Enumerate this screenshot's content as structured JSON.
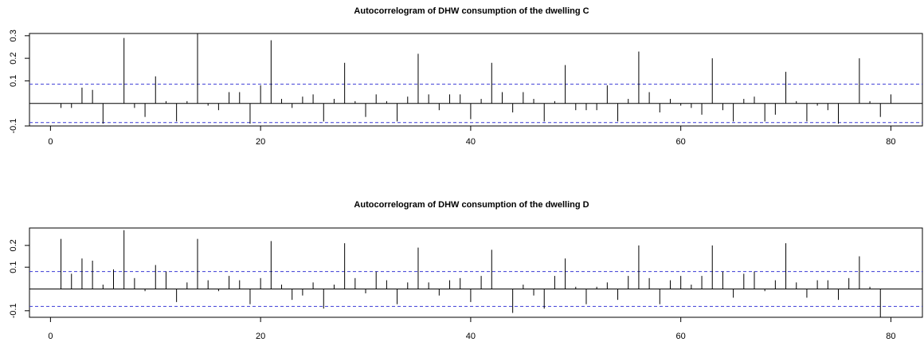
{
  "chart_data": [
    {
      "type": "bar",
      "title": "Autocorrelogram of DHW consumption of the dwelling C",
      "xlabel": "",
      "ylabel": "",
      "xlim": [
        -2,
        83
      ],
      "ylim": [
        -0.1,
        0.31
      ],
      "x_ticks": [
        0,
        20,
        40,
        60,
        80
      ],
      "x_tick_labels": [
        "0",
        "20",
        "40",
        "60",
        "80"
      ],
      "y_ticks": [
        -0.1,
        0.1,
        0.2,
        0.3
      ],
      "y_tick_labels": [
        "-0.1",
        "0.1",
        "0.2",
        "0.3"
      ],
      "confidence_band": 0.085,
      "lags": [
        1,
        2,
        3,
        4,
        5,
        6,
        7,
        8,
        9,
        10,
        11,
        12,
        13,
        14,
        15,
        16,
        17,
        18,
        19,
        20,
        21,
        22,
        23,
        24,
        25,
        26,
        27,
        28,
        29,
        30,
        31,
        32,
        33,
        34,
        35,
        36,
        37,
        38,
        39,
        40,
        41,
        42,
        43,
        44,
        45,
        46,
        47,
        48,
        49,
        50,
        51,
        52,
        53,
        54,
        55,
        56,
        57,
        58,
        59,
        60,
        61,
        62,
        63,
        64,
        65,
        66,
        67,
        68,
        69,
        70,
        71,
        72,
        73,
        74,
        75,
        76,
        77,
        78,
        79,
        80
      ],
      "values": [
        -0.02,
        -0.02,
        0.07,
        0.06,
        -0.09,
        0.0,
        0.29,
        -0.02,
        -0.06,
        0.12,
        0.01,
        -0.08,
        0.01,
        0.31,
        -0.01,
        -0.03,
        0.05,
        0.05,
        -0.09,
        0.08,
        0.28,
        0.02,
        -0.02,
        0.03,
        0.04,
        -0.08,
        0.02,
        0.18,
        0.01,
        -0.06,
        0.04,
        0.01,
        -0.08,
        0.03,
        0.22,
        0.04,
        -0.03,
        0.04,
        0.04,
        -0.07,
        0.02,
        0.18,
        0.05,
        -0.04,
        0.05,
        0.02,
        -0.08,
        0.01,
        0.17,
        -0.03,
        -0.03,
        -0.03,
        0.08,
        -0.08,
        0.02,
        0.23,
        0.05,
        -0.04,
        0.02,
        -0.01,
        -0.02,
        -0.05,
        0.2,
        -0.03,
        -0.08,
        0.02,
        0.03,
        -0.08,
        -0.05,
        0.14,
        0.01,
        -0.08,
        -0.01,
        -0.03,
        -0.09,
        0.0,
        0.2,
        0.01,
        -0.06,
        0.04
      ],
      "series_color": "#000000",
      "band_color": "#3b3bd6"
    },
    {
      "type": "bar",
      "title": "Autocorrelogram of DHW consumption of the dwelling D",
      "xlabel": "",
      "ylabel": "",
      "xlim": [
        -2,
        83
      ],
      "ylim": [
        -0.13,
        0.28
      ],
      "x_ticks": [
        0,
        20,
        40,
        60,
        80
      ],
      "x_tick_labels": [
        "0",
        "20",
        "40",
        "60",
        "80"
      ],
      "y_ticks": [
        -0.1,
        0.1,
        0.2
      ],
      "y_tick_labels": [
        "-0.1",
        "0.1",
        "0.2"
      ],
      "confidence_band": 0.08,
      "lags": [
        1,
        2,
        3,
        4,
        5,
        6,
        7,
        8,
        9,
        10,
        11,
        12,
        13,
        14,
        15,
        16,
        17,
        18,
        19,
        20,
        21,
        22,
        23,
        24,
        25,
        26,
        27,
        28,
        29,
        30,
        31,
        32,
        33,
        34,
        35,
        36,
        37,
        38,
        39,
        40,
        41,
        42,
        43,
        44,
        45,
        46,
        47,
        48,
        49,
        50,
        51,
        52,
        53,
        54,
        55,
        56,
        57,
        58,
        59,
        60,
        61,
        62,
        63,
        64,
        65,
        66,
        67,
        68,
        69,
        70,
        71,
        72,
        73,
        74,
        75,
        76,
        77,
        78,
        79,
        80
      ],
      "values": [
        0.23,
        0.07,
        0.14,
        0.13,
        0.02,
        0.09,
        0.27,
        0.05,
        -0.01,
        0.11,
        0.08,
        -0.06,
        0.03,
        0.23,
        0.04,
        -0.01,
        0.06,
        0.04,
        -0.07,
        0.05,
        0.22,
        0.02,
        -0.05,
        -0.03,
        0.03,
        -0.09,
        0.02,
        0.21,
        0.05,
        -0.02,
        0.08,
        0.04,
        -0.07,
        0.03,
        0.19,
        0.03,
        -0.03,
        0.04,
        0.05,
        -0.06,
        0.06,
        0.18,
        0.0,
        -0.11,
        0.02,
        -0.03,
        -0.09,
        0.06,
        0.14,
        0.01,
        -0.07,
        0.01,
        0.03,
        -0.05,
        0.06,
        0.2,
        0.05,
        -0.07,
        0.04,
        0.06,
        0.02,
        0.06,
        0.2,
        0.08,
        -0.04,
        0.07,
        0.08,
        -0.01,
        0.04,
        0.21,
        0.03,
        -0.04,
        0.04,
        0.04,
        -0.05,
        0.05,
        0.15,
        0.01,
        -0.13,
        0.0
      ],
      "series_color": "#000000",
      "band_color": "#3b3bd6"
    }
  ]
}
